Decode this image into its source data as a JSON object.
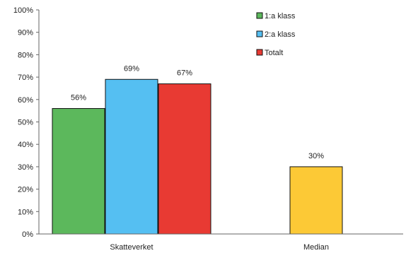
{
  "chart_data": {
    "type": "bar",
    "title": "",
    "xlabel": "",
    "ylabel": "",
    "ylim": [
      0,
      100
    ],
    "ytick_values": [
      0,
      10,
      20,
      30,
      40,
      50,
      60,
      70,
      80,
      90,
      100
    ],
    "ytick_labels": [
      "0%",
      "10%",
      "20%",
      "30%",
      "40%",
      "50%",
      "60%",
      "70%",
      "80%",
      "90%",
      "100%"
    ],
    "categories": [
      "Skatteverket",
      "Median"
    ],
    "bars": [
      {
        "category": "Skatteverket",
        "series": "1:a klass",
        "value": 56,
        "label": "56%",
        "color": "#5cb85c"
      },
      {
        "category": "Skatteverket",
        "series": "2:a klass",
        "value": 69,
        "label": "69%",
        "color": "#55bff2"
      },
      {
        "category": "Skatteverket",
        "series": "Totalt",
        "value": 67,
        "label": "67%",
        "color": "#e83a33"
      },
      {
        "category": "Median",
        "series": "",
        "value": 30,
        "label": "30%",
        "color": "#fcc936"
      }
    ],
    "legend": {
      "position": "top-right",
      "items": [
        {
          "name": "1:a klass",
          "color": "#5cb85c"
        },
        {
          "name": "2:a klass",
          "color": "#55bff2"
        },
        {
          "name": "Totalt",
          "color": "#e83a33"
        }
      ]
    },
    "grid": false
  }
}
